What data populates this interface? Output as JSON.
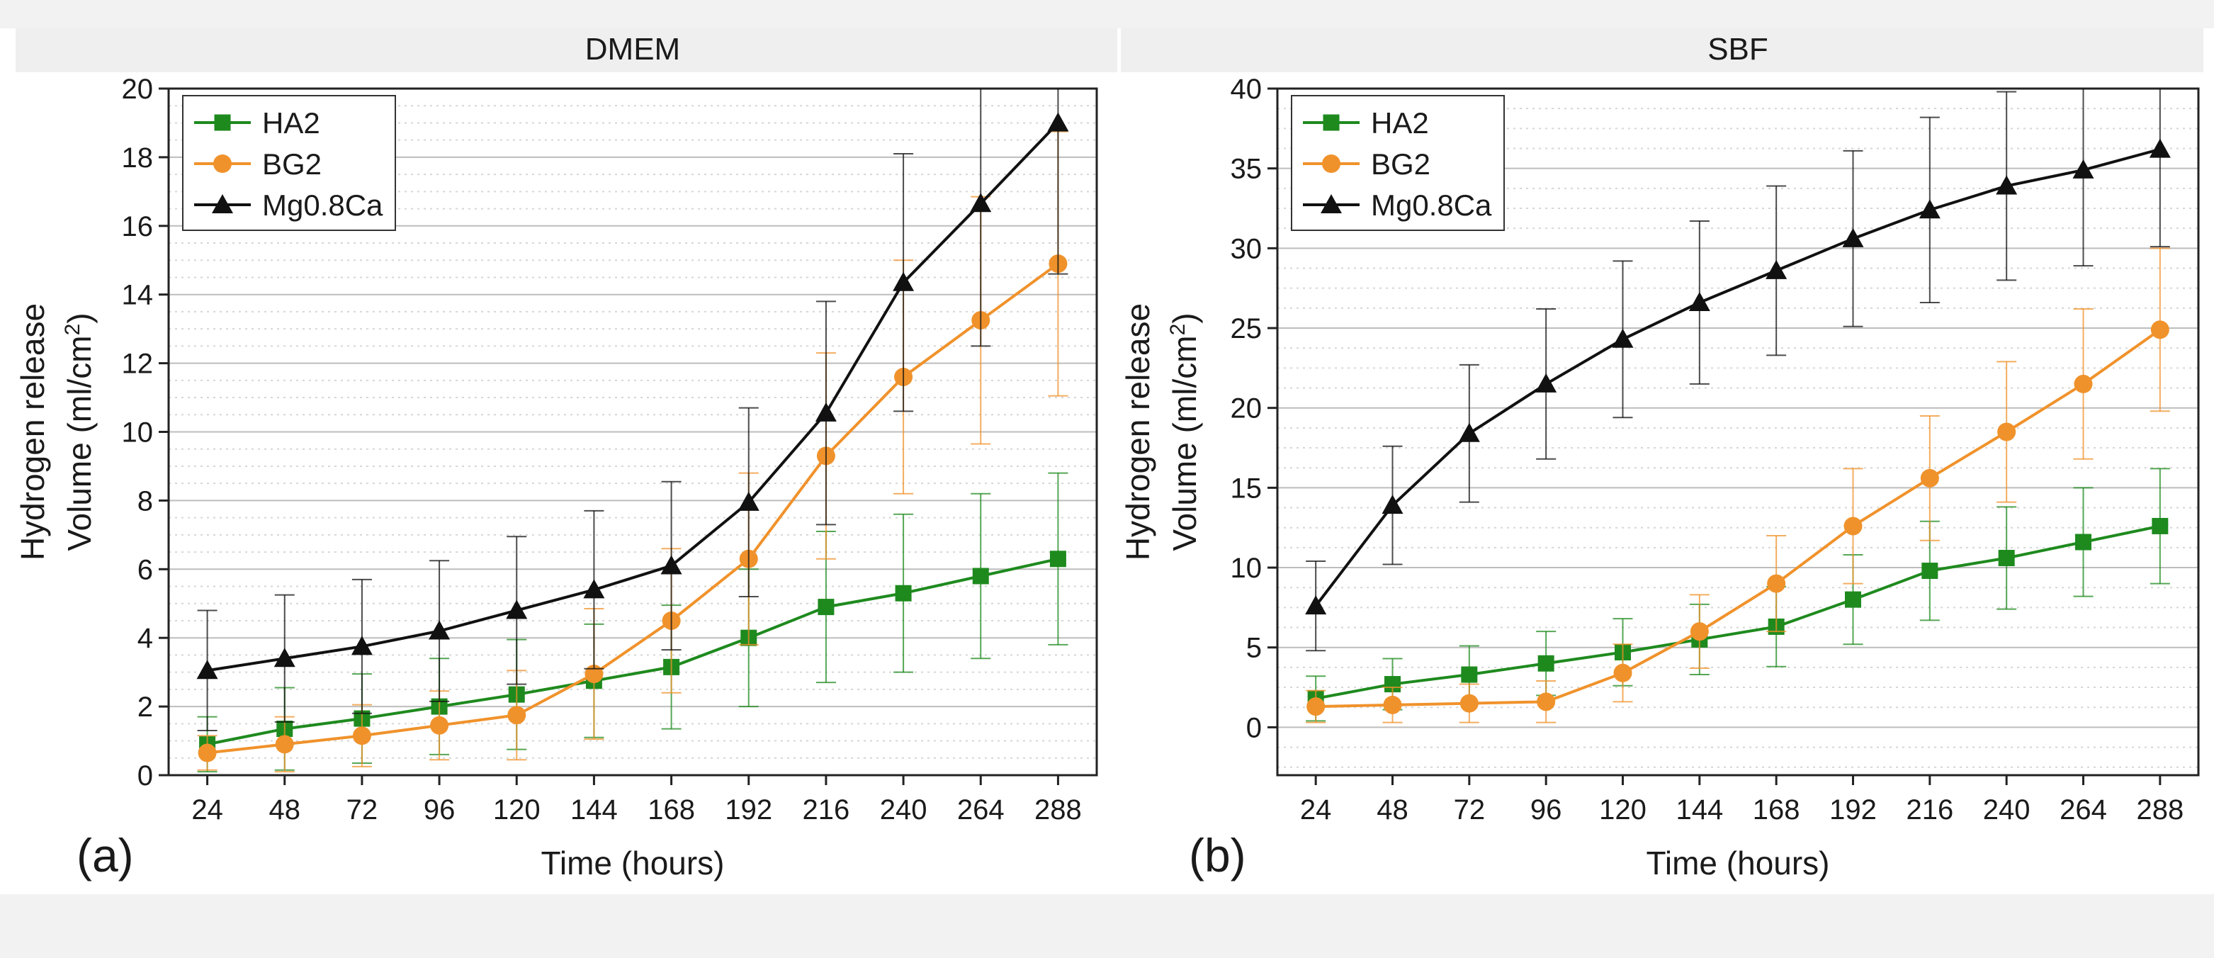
{
  "chart_data": [
    {
      "type": "line",
      "panel_label": "(a)",
      "title": "DMEM",
      "xlabel": "Time (hours)",
      "ylabel_line1": "Hydrogen release",
      "ylabel_line2_prefix": "Volume (ml/cm",
      "ylabel_line2_sup": "2",
      "ylabel_line2_suffix": ")",
      "x": [
        24,
        48,
        72,
        96,
        120,
        144,
        168,
        192,
        216,
        240,
        264,
        288
      ],
      "xlim": [
        12,
        300
      ],
      "ylim": [
        0,
        20
      ],
      "yticks": [
        0,
        2,
        4,
        6,
        8,
        10,
        12,
        14,
        16,
        18,
        20
      ],
      "minor_step": 0.5,
      "legend_position": "top-left",
      "series": [
        {
          "name": "HA2",
          "color": "#1e8a1e",
          "marker": "square",
          "values": [
            0.9,
            1.35,
            1.65,
            2.0,
            2.35,
            2.75,
            3.15,
            4.0,
            4.9,
            5.3,
            5.8,
            6.3
          ],
          "errors": [
            0.8,
            1.2,
            1.3,
            1.4,
            1.6,
            1.65,
            1.8,
            2.0,
            2.2,
            2.3,
            2.4,
            2.5
          ]
        },
        {
          "name": "BG2",
          "color": "#f0922b",
          "marker": "circle",
          "values": [
            0.65,
            0.9,
            1.15,
            1.45,
            1.75,
            2.95,
            4.5,
            6.3,
            9.3,
            11.6,
            13.25,
            14.9
          ],
          "errors": [
            0.5,
            0.8,
            0.9,
            1.0,
            1.3,
            1.9,
            2.1,
            2.5,
            3.0,
            3.4,
            3.6,
            3.85
          ]
        },
        {
          "name": "Mg0.8Ca",
          "color": "#111111",
          "marker": "triangle",
          "values": [
            3.05,
            3.4,
            3.75,
            4.2,
            4.8,
            5.4,
            6.1,
            7.95,
            10.55,
            14.35,
            16.65,
            19.0
          ],
          "errors": [
            1.75,
            1.85,
            1.95,
            2.05,
            2.15,
            2.3,
            2.45,
            2.75,
            3.25,
            3.75,
            4.15,
            4.4
          ]
        }
      ]
    },
    {
      "type": "line",
      "panel_label": "(b)",
      "title": "SBF",
      "xlabel": "Time (hours)",
      "ylabel_line1": "Hydrogen release",
      "ylabel_line2_prefix": "Volume (ml/cm",
      "ylabel_line2_sup": "2",
      "ylabel_line2_suffix": ")",
      "x": [
        24,
        48,
        72,
        96,
        120,
        144,
        168,
        192,
        216,
        240,
        264,
        288
      ],
      "xlim": [
        12,
        300
      ],
      "ylim": [
        -3,
        40
      ],
      "yticks": [
        0,
        5,
        10,
        15,
        20,
        25,
        30,
        35,
        40
      ],
      "minor_step": 1.25,
      "legend_position": "top-left",
      "series": [
        {
          "name": "HA2",
          "color": "#1e8a1e",
          "marker": "square",
          "values": [
            1.8,
            2.7,
            3.3,
            4.0,
            4.7,
            5.5,
            6.3,
            8.0,
            9.8,
            10.6,
            11.6,
            12.6
          ],
          "errors": [
            1.4,
            1.6,
            1.8,
            2.0,
            2.1,
            2.2,
            2.5,
            2.8,
            3.1,
            3.2,
            3.4,
            3.6
          ]
        },
        {
          "name": "BG2",
          "color": "#f0922b",
          "marker": "circle",
          "values": [
            1.3,
            1.4,
            1.5,
            1.6,
            3.4,
            6.0,
            9.0,
            12.6,
            15.6,
            18.5,
            21.5,
            24.9
          ],
          "errors": [
            1.0,
            1.1,
            1.2,
            1.3,
            1.8,
            2.3,
            3.0,
            3.6,
            3.9,
            4.4,
            4.7,
            5.1
          ]
        },
        {
          "name": "Mg0.8Ca",
          "color": "#111111",
          "marker": "triangle",
          "values": [
            7.6,
            13.9,
            18.4,
            21.5,
            24.3,
            26.6,
            28.6,
            30.6,
            32.4,
            33.9,
            34.9,
            36.2
          ],
          "errors": [
            2.8,
            3.7,
            4.3,
            4.7,
            4.9,
            5.1,
            5.3,
            5.5,
            5.8,
            5.9,
            6.0,
            6.1
          ]
        }
      ]
    }
  ]
}
